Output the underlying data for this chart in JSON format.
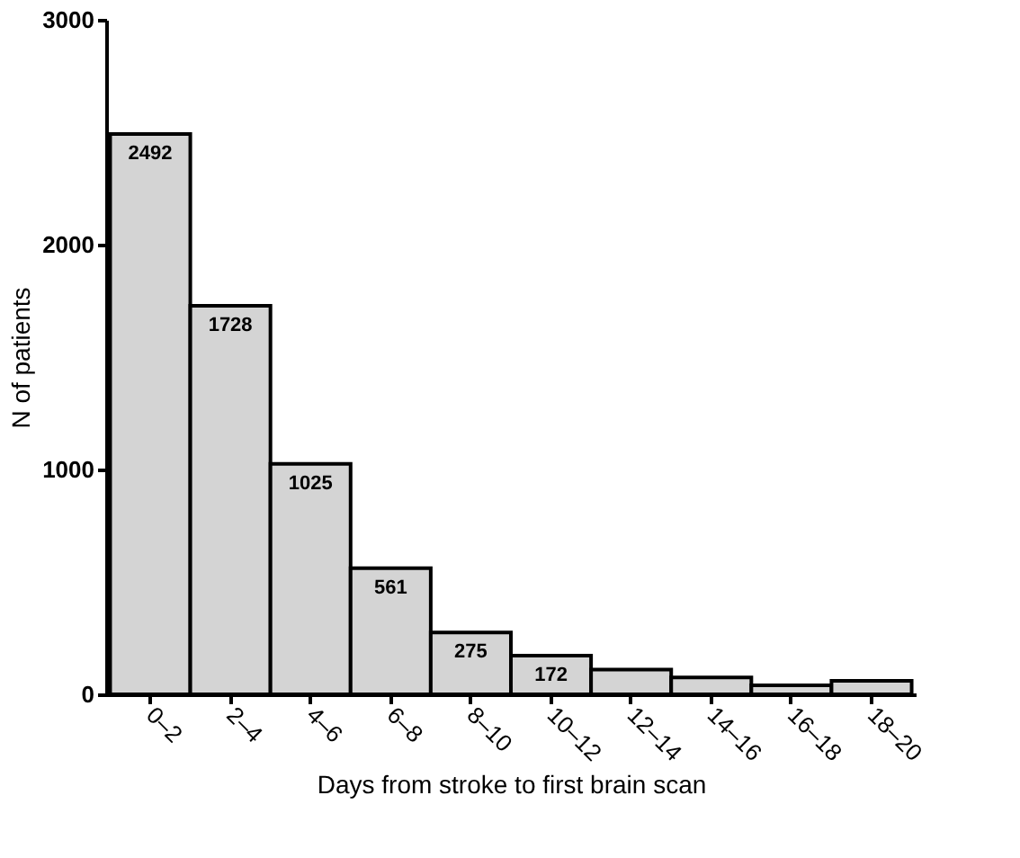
{
  "chart_data": {
    "type": "bar",
    "xlabel": "Days from stroke to first brain scan",
    "ylabel": "N of patients",
    "categories": [
      "0–2",
      "2–4",
      "4–6",
      "6–8",
      "8–10",
      "10–12",
      "12–14",
      "14–16",
      "16–18",
      "18–20"
    ],
    "values": [
      2492,
      1728,
      1025,
      561,
      275,
      172,
      110,
      75,
      40,
      60
    ],
    "value_labels": [
      "2492",
      "1728",
      "1025",
      "561",
      "275",
      "172",
      null,
      null,
      null,
      null
    ],
    "color": "#d4d4d4",
    "ylim": [
      0,
      3000
    ],
    "yticks": [
      0,
      1000,
      2000,
      3000
    ],
    "grid": false
  }
}
